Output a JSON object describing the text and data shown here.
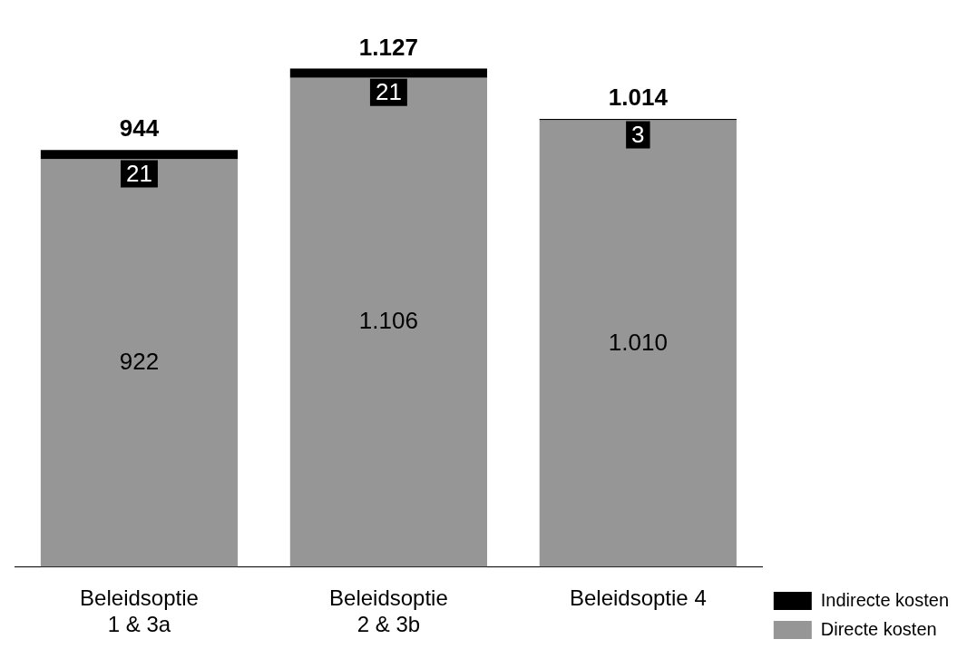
{
  "chart_data": {
    "type": "bar",
    "stacked": true,
    "categories": [
      "Beleidsoptie 1 & 3a",
      "Beleidsoptie 2 & 3b",
      "Beleidsoptie 4"
    ],
    "series": [
      {
        "name": "Directe kosten",
        "color": "#969696",
        "values": [
          922,
          1106,
          1010
        ],
        "value_labels": [
          "922",
          "1.106",
          "1.010"
        ]
      },
      {
        "name": "Indirecte kosten",
        "color": "#000000",
        "values": [
          21,
          21,
          3
        ],
        "value_labels": [
          "21",
          "21",
          "3"
        ]
      }
    ],
    "totals": [
      "944",
      "1.127",
      "1.014"
    ],
    "legend": "bottom right",
    "grid": false
  }
}
